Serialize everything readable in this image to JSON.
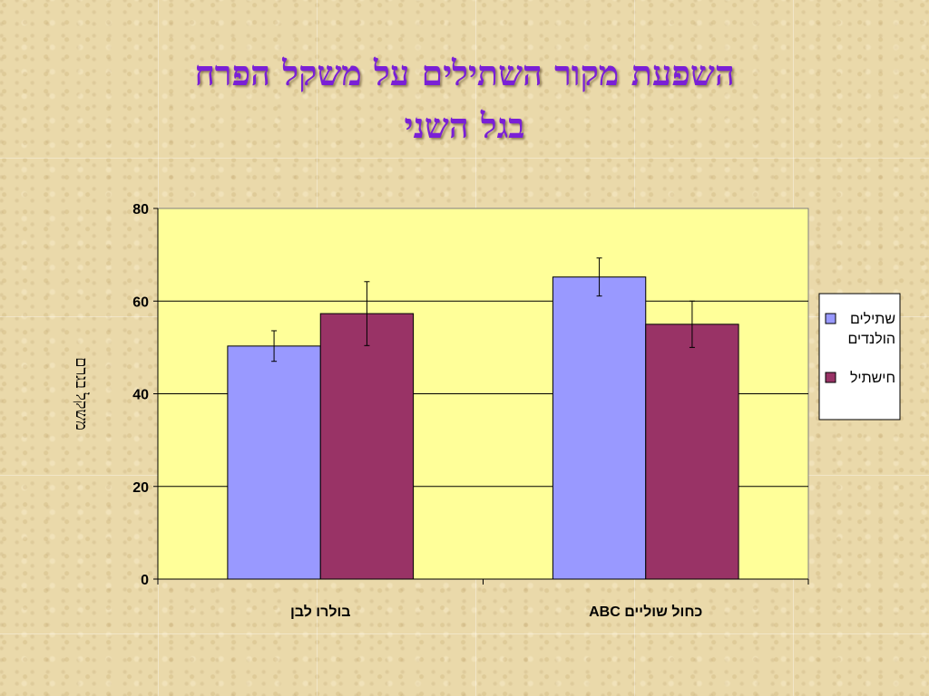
{
  "slide": {
    "title_line1": "השפעת מקור השתילים על משקל הפרח",
    "title_line2": "בגל השני"
  },
  "chart_data": {
    "type": "bar",
    "categories": [
      "בולרו לבן",
      "כחול שוליים ABC"
    ],
    "series": [
      {
        "name": "שתילים הולנדים",
        "values": [
          50.3,
          65.2
        ],
        "errors": [
          3.3,
          4.1
        ],
        "color": "#9999ff"
      },
      {
        "name": "חישתיל",
        "values": [
          57.3,
          55.0
        ],
        "errors": [
          6.9,
          5.0
        ],
        "color": "#993366"
      }
    ],
    "ylabel": "משקל בגרם",
    "xlabel": "",
    "ylim": [
      0,
      80
    ],
    "yticks": [
      0,
      20,
      40,
      60,
      80
    ],
    "grid": true,
    "legend_position": "right",
    "plot_background": "#ffff99"
  }
}
